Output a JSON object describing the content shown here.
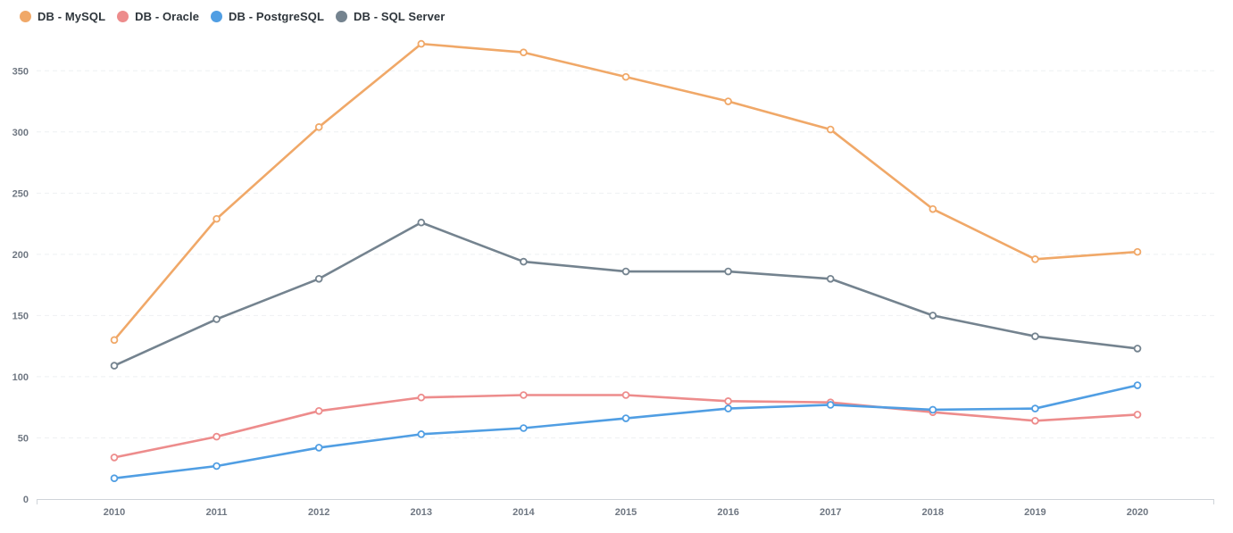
{
  "chart_data": {
    "type": "line",
    "categories": [
      "2010",
      "2011",
      "2012",
      "2013",
      "2014",
      "2015",
      "2016",
      "2017",
      "2018",
      "2019",
      "2020"
    ],
    "series": [
      {
        "name": "DB - MySQL",
        "color": "#f0a868",
        "values": [
          130,
          229,
          304,
          372,
          365,
          345,
          325,
          302,
          237,
          196,
          202
        ]
      },
      {
        "name": "DB - Oracle",
        "color": "#ed8c8c",
        "values": [
          34,
          51,
          72,
          83,
          85,
          85,
          80,
          79,
          71,
          64,
          69
        ]
      },
      {
        "name": "DB - PostgreSQL",
        "color": "#509ee3",
        "values": [
          17,
          27,
          42,
          53,
          58,
          66,
          74,
          77,
          73,
          74,
          93
        ]
      },
      {
        "name": "DB - SQL Server",
        "color": "#74838f",
        "values": [
          109,
          147,
          180,
          226,
          194,
          186,
          186,
          180,
          150,
          133,
          123
        ]
      }
    ],
    "y_ticks": [
      "0",
      "50",
      "100",
      "150",
      "200",
      "250",
      "300",
      "350"
    ],
    "ylim": [
      0,
      375
    ],
    "xlabel": "",
    "ylabel": "",
    "legend_position": "top-left",
    "grid": true
  }
}
